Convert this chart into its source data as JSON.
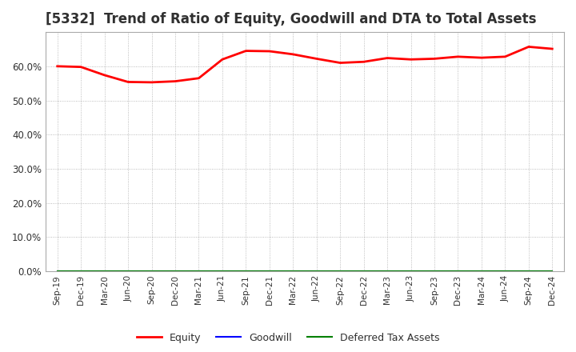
{
  "title": "[5332]  Trend of Ratio of Equity, Goodwill and DTA to Total Assets",
  "x_labels": [
    "Sep-19",
    "Dec-19",
    "Mar-20",
    "Jun-20",
    "Sep-20",
    "Dec-20",
    "Mar-21",
    "Jun-21",
    "Sep-21",
    "Dec-21",
    "Mar-22",
    "Jun-22",
    "Sep-22",
    "Dec-22",
    "Mar-23",
    "Jun-23",
    "Sep-23",
    "Dec-23",
    "Mar-24",
    "Jun-24",
    "Sep-24",
    "Dec-24"
  ],
  "equity": [
    0.6,
    0.598,
    0.574,
    0.554,
    0.553,
    0.556,
    0.565,
    0.62,
    0.645,
    0.644,
    0.635,
    0.622,
    0.61,
    0.613,
    0.624,
    0.62,
    0.622,
    0.628,
    0.625,
    0.628,
    0.657,
    0.651
  ],
  "goodwill": [
    0.0,
    0.0,
    0.0,
    0.0,
    0.0,
    0.0,
    0.0,
    0.0,
    0.0,
    0.0,
    0.0,
    0.0,
    0.0,
    0.0,
    0.0,
    0.0,
    0.0,
    0.0,
    0.0,
    0.0,
    0.0,
    0.0
  ],
  "dta": [
    0.0,
    0.0,
    0.0,
    0.0,
    0.0,
    0.0,
    0.0,
    0.0,
    0.0,
    0.0,
    0.0,
    0.0,
    0.0,
    0.0,
    0.0,
    0.0,
    0.0,
    0.0,
    0.0,
    0.0,
    0.0,
    0.0
  ],
  "equity_color": "#FF0000",
  "goodwill_color": "#0000FF",
  "dta_color": "#008000",
  "ylim": [
    0.0,
    0.7
  ],
  "yticks": [
    0.0,
    0.1,
    0.2,
    0.3,
    0.4,
    0.5,
    0.6
  ],
  "background_color": "#FFFFFF",
  "plot_bg_color": "#FFFFFF",
  "grid_color": "#AAAAAA",
  "title_color": "#303030",
  "title_fontsize": 12,
  "legend_labels": [
    "Equity",
    "Goodwill",
    "Deferred Tax Assets"
  ]
}
